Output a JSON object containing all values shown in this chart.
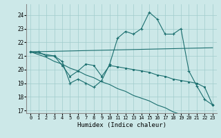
{
  "xlabel": "Humidex (Indice chaleur)",
  "xlim": [
    -0.5,
    23.5
  ],
  "ylim": [
    16.8,
    24.8
  ],
  "yticks": [
    17,
    18,
    19,
    20,
    21,
    22,
    23,
    24
  ],
  "xticks": [
    0,
    1,
    2,
    3,
    4,
    5,
    6,
    7,
    8,
    9,
    10,
    11,
    12,
    13,
    14,
    15,
    16,
    17,
    18,
    19,
    20,
    21,
    22,
    23
  ],
  "bg_color": "#cce8e8",
  "grid_color": "#a0cccc",
  "line_color": "#1a6e6e",
  "line1_x": [
    0,
    1,
    2,
    3,
    4,
    5,
    6,
    7,
    8,
    9,
    10,
    11,
    12,
    13,
    14,
    15,
    16,
    17,
    18,
    19,
    20,
    21,
    22,
    23
  ],
  "line1_y": [
    21.3,
    21.3,
    21.0,
    21.0,
    20.6,
    19.0,
    19.3,
    19.0,
    18.7,
    19.2,
    20.4,
    22.3,
    22.8,
    22.6,
    23.0,
    24.2,
    23.7,
    22.6,
    22.6,
    23.0,
    19.9,
    18.8,
    17.8,
    17.4
  ],
  "line2_x": [
    0,
    23
  ],
  "line2_y": [
    21.3,
    21.6
  ],
  "line3_x": [
    0,
    1,
    2,
    3,
    4,
    5,
    6,
    7,
    8,
    9,
    10,
    11,
    12,
    13,
    14,
    15,
    16,
    17,
    18,
    19,
    20,
    21,
    22,
    23
  ],
  "line3_y": [
    21.3,
    21.1,
    20.9,
    20.6,
    20.4,
    20.1,
    19.9,
    19.6,
    19.4,
    19.1,
    18.9,
    18.6,
    18.4,
    18.1,
    17.9,
    17.7,
    17.4,
    17.2,
    16.9,
    16.7,
    16.4,
    16.2,
    15.9,
    15.7
  ],
  "line4_x": [
    0,
    3,
    4,
    5,
    6,
    7,
    8,
    9,
    10,
    11,
    12,
    13,
    14,
    15,
    16,
    17,
    18,
    19,
    20,
    21,
    22,
    23
  ],
  "line4_y": [
    21.3,
    21.0,
    20.3,
    19.5,
    19.9,
    20.4,
    20.3,
    19.5,
    20.3,
    20.2,
    20.1,
    20.0,
    19.9,
    19.8,
    19.6,
    19.5,
    19.3,
    19.2,
    19.1,
    19.0,
    18.7,
    17.4
  ]
}
